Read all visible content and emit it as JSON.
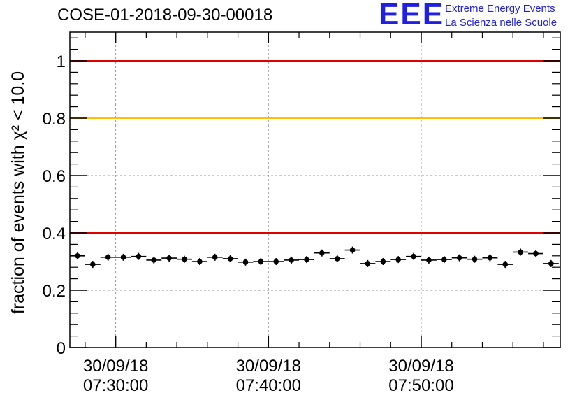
{
  "header": {
    "title": "COSE-01-2018-09-30-00018",
    "logo_text": "EEE",
    "logo_line1": "Extreme Energy Events",
    "logo_line2": "La Scienza nelle Scuole"
  },
  "chart_data": {
    "type": "scatter",
    "title": "COSE-01-2018-09-30-00018",
    "ylabel": "fraction of events with χ² < 10.0",
    "xlabel": "",
    "ylim": [
      0,
      1.1
    ],
    "xlim_minutes": [
      27.0,
      59.1
    ],
    "y_ticks": [
      "0",
      "0.2",
      "0.4",
      "0.6",
      "0.8",
      "1"
    ],
    "x_ticks": [
      {
        "minute": 30,
        "date": "30/09/18",
        "time": "07:30:00"
      },
      {
        "minute": 40,
        "date": "30/09/18",
        "time": "07:40:00"
      },
      {
        "minute": 50,
        "date": "30/09/18",
        "time": "07:50:00"
      }
    ],
    "grid": true,
    "bin_width_minutes": 1,
    "reference_lines": [
      {
        "y": 1.0,
        "color": "#e00000"
      },
      {
        "y": 0.8,
        "color": "#ffc000"
      },
      {
        "y": 0.4,
        "color": "#e00000"
      }
    ],
    "series": [
      {
        "name": "fraction",
        "color": "#000000",
        "x_minutes": [
          27.5,
          28.5,
          29.5,
          30.5,
          31.5,
          32.5,
          33.5,
          34.5,
          35.5,
          36.5,
          37.5,
          38.5,
          39.5,
          40.5,
          41.5,
          42.5,
          43.5,
          44.5,
          45.5,
          46.5,
          47.5,
          48.5,
          49.5,
          50.5,
          51.5,
          52.5,
          53.5,
          54.5,
          55.5,
          56.5,
          57.5,
          58.5
        ],
        "values": [
          0.32,
          0.29,
          0.315,
          0.315,
          0.318,
          0.305,
          0.312,
          0.308,
          0.3,
          0.315,
          0.31,
          0.298,
          0.3,
          0.3,
          0.305,
          0.307,
          0.33,
          0.31,
          0.34,
          0.293,
          0.3,
          0.307,
          0.318,
          0.305,
          0.307,
          0.313,
          0.308,
          0.313,
          0.29,
          0.333,
          0.328,
          0.293
        ]
      }
    ]
  }
}
